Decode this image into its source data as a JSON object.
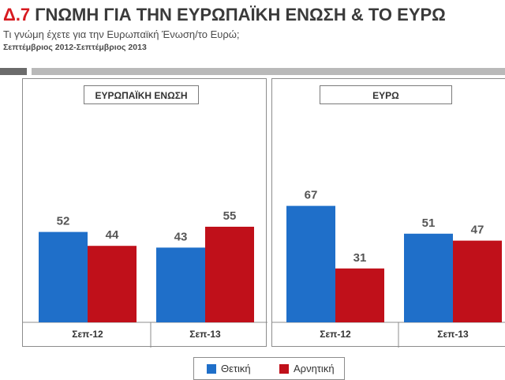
{
  "header": {
    "code": "Δ.7",
    "title": "ΓΝΩΜΗ ΓΙΑ ΤΗΝ ΕΥΡΩΠΑΪΚΗ ΕΝΩΣΗ & ΤΟ ΕΥΡΩ",
    "subtitle": "Τι γνώμη έχετε για την Ευρωπαϊκή Ένωση/το Ευρώ;",
    "period": "Σεπτέμβριος 2012-Σεπτέμβριος 2013"
  },
  "colors": {
    "positive": "#1f6fc9",
    "negative": "#c0101a",
    "accent": "#d71a20"
  },
  "legend": {
    "positive": "Θετική",
    "negative": "Αρνητική"
  },
  "chart_data": [
    {
      "type": "bar",
      "title": "ΕΥΡΩΠΑΪΚΗ ΕΝΩΣΗ",
      "categories": [
        "Σεπ-12",
        "Σεπ-13"
      ],
      "series": [
        {
          "name": "Θετική",
          "values": [
            52,
            43
          ]
        },
        {
          "name": "Αρνητική",
          "values": [
            44,
            55
          ]
        }
      ],
      "ylim": [
        0,
        70
      ]
    },
    {
      "type": "bar",
      "title": "ΕΥΡΩ",
      "categories": [
        "Σεπ-12",
        "Σεπ-13"
      ],
      "series": [
        {
          "name": "Θετική",
          "values": [
            67,
            51
          ]
        },
        {
          "name": "Αρνητική",
          "values": [
            31,
            47
          ]
        }
      ],
      "ylim": [
        0,
        70
      ]
    }
  ]
}
